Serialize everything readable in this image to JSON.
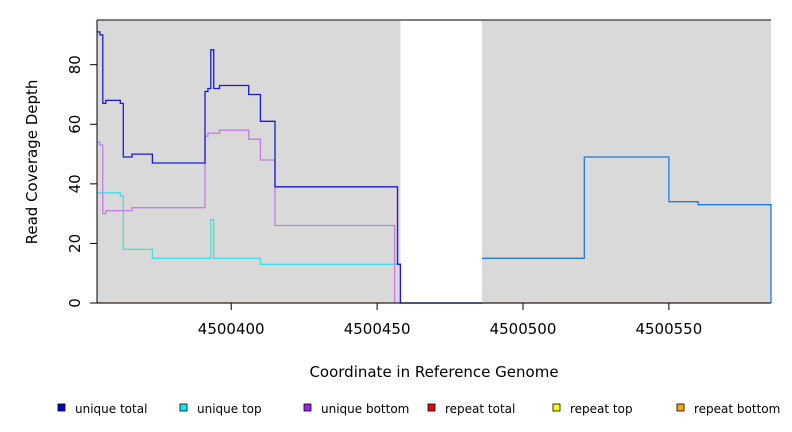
{
  "chart_data": {
    "type": "line",
    "step": true,
    "xlabel": "Coordinate in Reference Genome",
    "ylabel": "Read Coverage Depth",
    "xlim": [
      4500354,
      4500585
    ],
    "ylim": [
      0,
      95
    ],
    "x_ticks": [
      4500400,
      4500450,
      4500500,
      4500550
    ],
    "y_ticks": [
      0,
      20,
      40,
      60,
      80
    ],
    "x_tick_labels": [
      "4500400",
      "4500450",
      "4500500",
      "4500550"
    ],
    "y_tick_labels": [
      "0",
      "20",
      "40",
      "60",
      "80"
    ],
    "background": "#d9d9d9",
    "gap_regions": [
      [
        4500458,
        4500486
      ]
    ],
    "legend_position": "bottom",
    "legend": [
      {
        "name": "unique total",
        "color": "#0000cc"
      },
      {
        "name": "unique top",
        "color": "#00eeee"
      },
      {
        "name": "unique bottom",
        "color": "#a020f0"
      },
      {
        "name": "repeat total",
        "color": "#ee0000"
      },
      {
        "name": "repeat top",
        "color": "#ffff00"
      },
      {
        "name": "repeat bottom",
        "color": "#ffa500"
      }
    ],
    "series": [
      {
        "name": "unique total",
        "color": "#1a1ad6",
        "points": [
          [
            4500354,
            91
          ],
          [
            4500355,
            90
          ],
          [
            4500356,
            67
          ],
          [
            4500357,
            68
          ],
          [
            4500362,
            67
          ],
          [
            4500363,
            49
          ],
          [
            4500366,
            50
          ],
          [
            4500373,
            47
          ],
          [
            4500391,
            71
          ],
          [
            4500392,
            72
          ],
          [
            4500393,
            85
          ],
          [
            4500394,
            72
          ],
          [
            4500396,
            73
          ],
          [
            4500406,
            70
          ],
          [
            4500410,
            61
          ],
          [
            4500415,
            39
          ],
          [
            4500457,
            13
          ],
          [
            4500458,
            0
          ],
          [
            4500486,
            0
          ]
        ]
      },
      {
        "name": "unique top",
        "color": "#40e0e0",
        "points": [
          [
            4500354,
            37
          ],
          [
            4500362,
            36
          ],
          [
            4500363,
            18
          ],
          [
            4500373,
            15
          ],
          [
            4500393,
            28
          ],
          [
            4500394,
            15
          ],
          [
            4500410,
            13
          ],
          [
            4500458,
            0
          ],
          [
            4500486,
            0
          ]
        ]
      },
      {
        "name": "unique bottom",
        "color": "#c080e0",
        "points": [
          [
            4500354,
            54
          ],
          [
            4500355,
            53
          ],
          [
            4500356,
            30
          ],
          [
            4500357,
            31
          ],
          [
            4500366,
            32
          ],
          [
            4500391,
            56
          ],
          [
            4500392,
            57
          ],
          [
            4500396,
            58
          ],
          [
            4500406,
            55
          ],
          [
            4500410,
            48
          ],
          [
            4500415,
            26
          ],
          [
            4500456,
            0
          ],
          [
            4500486,
            0
          ]
        ]
      },
      {
        "name": "repeat total",
        "color": "#ff8080",
        "points": [
          [
            4500486,
            0
          ],
          [
            4500585,
            0
          ]
        ]
      },
      {
        "name": "repeat bottom",
        "color": "#ffa500",
        "points": [
          [
            4500354,
            0
          ],
          [
            4500456,
            0
          ]
        ]
      },
      {
        "name": "",
        "color": "#1c7ae8",
        "points": [
          [
            4500486,
            15
          ],
          [
            4500521,
            49
          ],
          [
            4500550,
            34
          ],
          [
            4500560,
            33
          ],
          [
            4500585,
            0
          ]
        ]
      }
    ]
  }
}
